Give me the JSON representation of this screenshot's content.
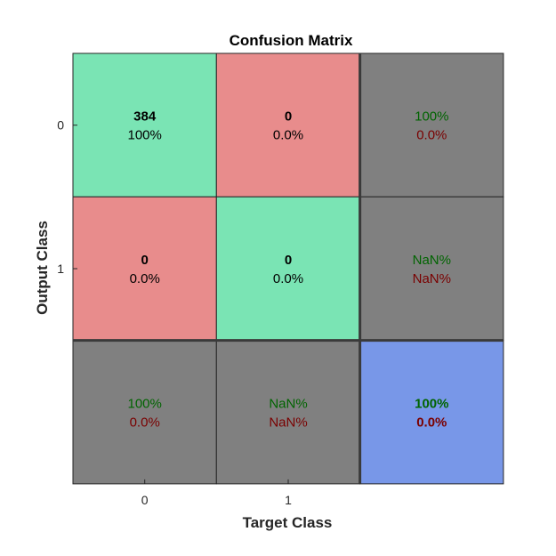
{
  "chart_data": {
    "type": "heatmap",
    "title": "Confusion Matrix",
    "xlabel": "Target Class",
    "ylabel": "Output Class",
    "x_tick_labels": [
      "0",
      "1"
    ],
    "y_tick_labels": [
      "0",
      "1"
    ],
    "counts": [
      [
        384,
        0
      ],
      [
        0,
        0
      ]
    ],
    "count_percents": [
      [
        "100%",
        "0.0%"
      ],
      [
        "0.0%",
        "0.0%"
      ]
    ],
    "row_summary": [
      {
        "correct": "100%",
        "incorrect": "0.0%"
      },
      {
        "correct": "NaN%",
        "incorrect": "NaN%"
      }
    ],
    "column_summary": [
      {
        "correct": "100%",
        "incorrect": "0.0%"
      },
      {
        "correct": "NaN%",
        "incorrect": "NaN%"
      }
    ],
    "overall": {
      "correct": "100%",
      "incorrect": "0.0%"
    },
    "colors": {
      "diagonal": "#7ae4b4",
      "off_diagonal": "#e88c8c",
      "summary": "#808080",
      "overall": "#7897e8",
      "correct_text": "#006400",
      "incorrect_text": "#7a0000",
      "count_text": "#000000",
      "grid_line": "#262626"
    },
    "grid": true,
    "legend": "none"
  }
}
